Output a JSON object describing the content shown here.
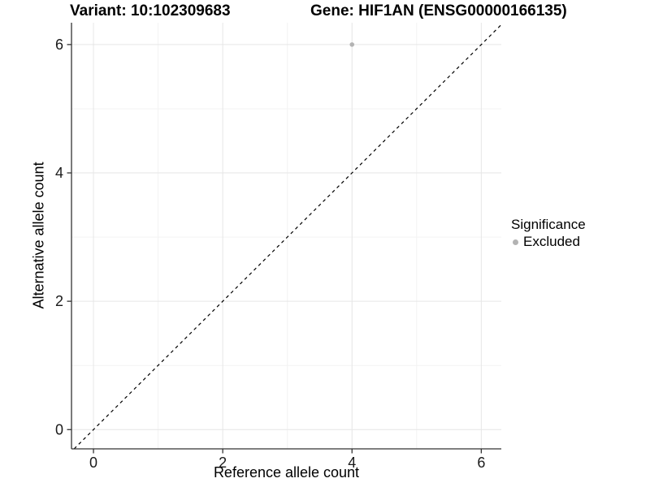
{
  "header": {
    "variant_title": "Variant: 10:102309683",
    "gene_title": "Gene: HIF1AN (ENSG00000166135)"
  },
  "legend": {
    "title": "Significance",
    "items": [
      {
        "label": "Excluded",
        "color": "#b3b3b3",
        "shape": "circle"
      }
    ]
  },
  "chart_data": {
    "type": "scatter",
    "title": "Variant: 10:102309683    Gene: HIF1AN (ENSG00000166135)",
    "xlabel": "Reference allele count",
    "ylabel": "Alternative allele count",
    "xlim": [
      -0.34,
      6.31
    ],
    "ylim": [
      -0.3,
      6.34
    ],
    "x_ticks": [
      0,
      2,
      4,
      6
    ],
    "y_ticks": [
      0,
      2,
      4,
      6
    ],
    "minor_gridlines": [
      1,
      3,
      5
    ],
    "grid": true,
    "legend_position": "right",
    "series": [
      {
        "name": "Excluded",
        "color": "#b3b3b3",
        "points": [
          {
            "x": 4,
            "y": 6
          }
        ]
      }
    ],
    "reference_line": {
      "type": "identity",
      "slope": 1,
      "intercept": 0,
      "style": "dashed",
      "color": "#000000"
    }
  },
  "colors": {
    "background": "#ffffff",
    "axis_line": "#333333",
    "tick_mark": "#333333",
    "tick_label": "#1a1a1a",
    "grid_major": "#e6e6e6",
    "grid_minor": "#f3f3f3",
    "point": "#b3b3b3",
    "text": "#000000",
    "dashed_line": "#000000"
  }
}
